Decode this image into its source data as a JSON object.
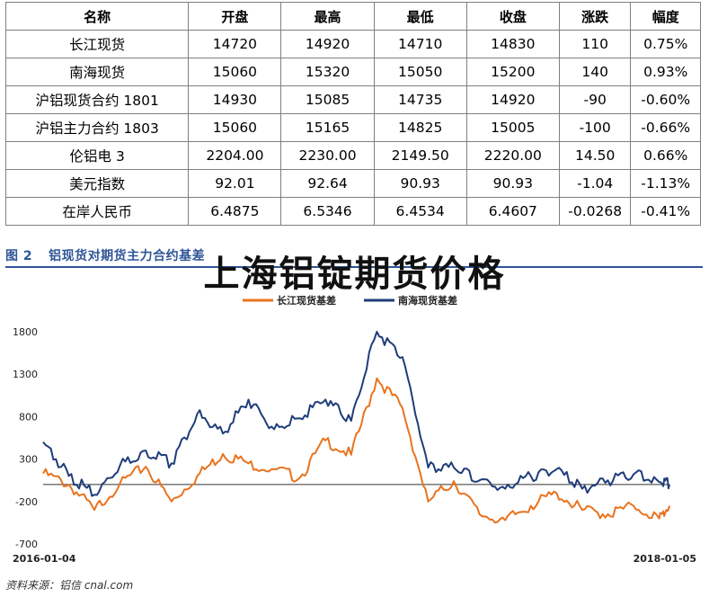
{
  "table": {
    "headers": [
      "名称",
      "开盘",
      "最高",
      "最低",
      "收盘",
      "涨跌",
      "幅度"
    ],
    "rows": [
      [
        "长江现货",
        "14720",
        "14920",
        "14710",
        "14830",
        "110",
        "0.75%"
      ],
      [
        "南海现货",
        "15060",
        "15320",
        "15050",
        "15200",
        "140",
        "0.93%"
      ],
      [
        "沪铝现货合约 1801",
        "14930",
        "15085",
        "14735",
        "14920",
        "-90",
        "-0.60%"
      ],
      [
        "沪铝主力合约 1803",
        "15060",
        "15165",
        "14825",
        "15005",
        "-100",
        "-0.66%"
      ],
      [
        "伦铝电 3",
        "2204.00",
        "2230.00",
        "2149.50",
        "2220.00",
        "14.50",
        "0.66%"
      ],
      [
        "美元指数",
        "92.01",
        "92.64",
        "90.93",
        "90.93",
        "-1.04",
        "-1.13%"
      ],
      [
        "在岸人民币",
        "6.4875",
        "6.5346",
        "6.4534",
        "6.4607",
        "-0.0268",
        "-0.41%"
      ]
    ]
  },
  "figure": {
    "number": "图 2",
    "caption": "铝现货对期货主力合约基差",
    "overlay_title": "上海铝锭期货价格",
    "source": "资料来源：铝信 cnal.com"
  },
  "chart_data": {
    "type": "line",
    "x_start": "2016-01-04",
    "x_end": "2018-01-05",
    "x_tick_labels": [
      "2016-01-04",
      "2018-01-05"
    ],
    "ylim": [
      -700,
      2000
    ],
    "y_ticks": [
      -700,
      -200,
      300,
      800,
      1300,
      1800
    ],
    "zero_line": true,
    "grid": false,
    "legend_position": "top",
    "colors": {
      "changjiang": "#e8731e",
      "nanhai": "#1f3d7a",
      "zero_line": "#333333"
    },
    "series": [
      {
        "name": "长江现货基差",
        "color": "#e8731e",
        "x": [
          "2016-01-04",
          "2016-02-03",
          "2016-03-04",
          "2016-04-03",
          "2016-05-03",
          "2016-06-02",
          "2016-07-02",
          "2016-08-01",
          "2016-08-31",
          "2016-09-30",
          "2016-10-30",
          "2016-11-29",
          "2016-12-29",
          "2017-01-28",
          "2017-02-27",
          "2017-03-29",
          "2017-04-28",
          "2017-05-28",
          "2017-06-27",
          "2017-07-27",
          "2017-08-26",
          "2017-09-25",
          "2017-10-25",
          "2017-11-24",
          "2017-12-24",
          "2018-01-05"
        ],
        "values": [
          130,
          0,
          -300,
          20,
          210,
          -200,
          100,
          360,
          250,
          180,
          80,
          520,
          350,
          1250,
          900,
          -200,
          40,
          -350,
          -420,
          -250,
          -100,
          -300,
          -350,
          -250,
          -400,
          -250
        ]
      },
      {
        "name": "南海现货基差",
        "color": "#1f3d7a",
        "x": [
          "2016-01-04",
          "2016-02-03",
          "2016-03-04",
          "2016-04-03",
          "2016-05-03",
          "2016-06-02",
          "2016-07-02",
          "2016-08-01",
          "2016-08-31",
          "2016-09-30",
          "2016-10-30",
          "2016-11-29",
          "2016-12-29",
          "2017-01-28",
          "2017-02-27",
          "2017-03-29",
          "2017-04-28",
          "2017-05-28",
          "2017-06-27",
          "2017-07-27",
          "2017-08-26",
          "2017-09-25",
          "2017-10-25",
          "2017-11-24",
          "2017-12-24",
          "2018-01-05"
        ],
        "values": [
          500,
          100,
          -120,
          230,
          400,
          250,
          830,
          600,
          1000,
          650,
          780,
          1000,
          750,
          1800,
          1500,
          200,
          200,
          50,
          -50,
          100,
          180,
          -50,
          50,
          120,
          30,
          0
        ]
      }
    ]
  }
}
